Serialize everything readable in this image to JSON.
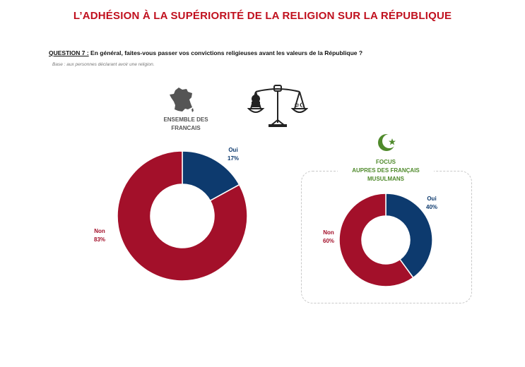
{
  "title": "L’ADHÉSION À LA SUPÉRIORITÉ DE LA RELIGION SUR LA RÉPUBLIQUE",
  "question": {
    "label": "QUESTION 7 :",
    "text": " En général, faites-vous passer vos convictions religieuses avant les valeurs de la République ?",
    "base": "Base : aux personnes déclarant avoir une religion."
  },
  "colors": {
    "oui": "#0d3a6e",
    "non": "#a3102a",
    "title": "#c0101e",
    "focus": "#4f8a2b"
  },
  "icons": {
    "overall": "france-map-icon",
    "scale": "balance-scale-icon",
    "focus": "crescent-star-icon"
  },
  "chart_data": [
    {
      "type": "pie",
      "title_lines": [
        "ENSEMBLE DES",
        "FRANCAIS"
      ],
      "slices": [
        {
          "label": "Oui",
          "value": 17,
          "display": "17%"
        },
        {
          "label": "Non",
          "value": 83,
          "display": "83%"
        }
      ]
    },
    {
      "type": "pie",
      "title_lines": [
        "FOCUS",
        "AUPRES DES FRANÇAIS",
        "MUSULMANS"
      ],
      "slices": [
        {
          "label": "Oui",
          "value": 40,
          "display": "40%"
        },
        {
          "label": "Non",
          "value": 60,
          "display": "60%"
        }
      ]
    }
  ]
}
